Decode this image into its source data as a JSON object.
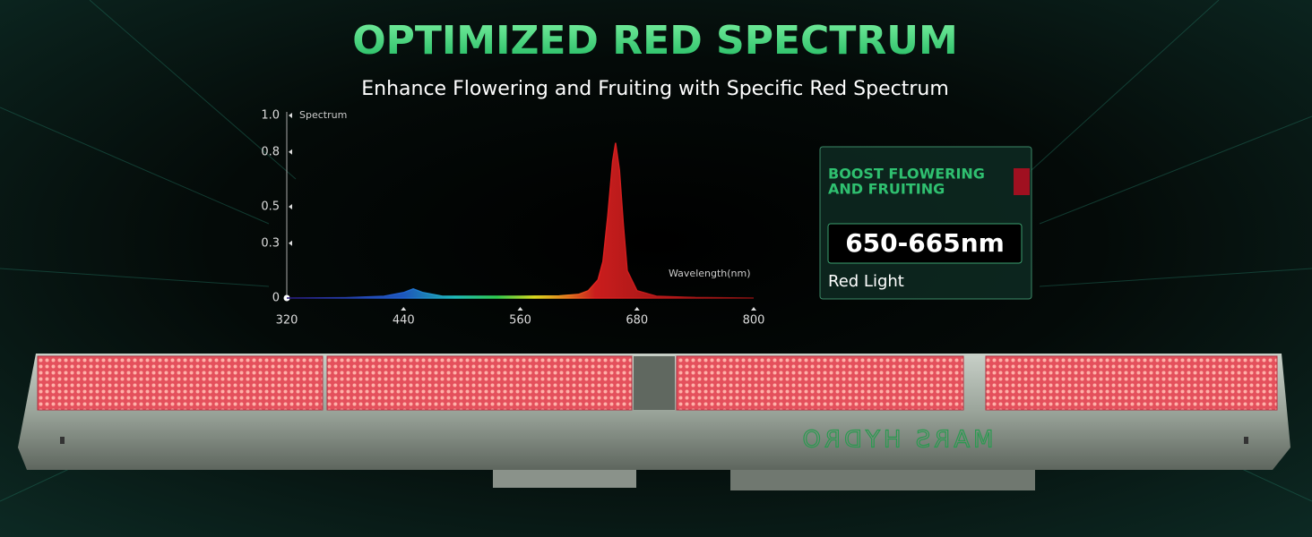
{
  "chart_data": {
    "type": "area",
    "title": "OPTIMIZED RED SPECTRUM",
    "subtitle": "Enhance Flowering and Fruiting with Specific Red Spectrum",
    "y_label": "Spectrum",
    "x_label": "Wavelength(nm)",
    "x": [
      320,
      380,
      420,
      440,
      450,
      460,
      480,
      520,
      560,
      600,
      620,
      630,
      640,
      645,
      650,
      655,
      658,
      662,
      666,
      670,
      680,
      700,
      740,
      800
    ],
    "values": [
      0,
      0.002,
      0.01,
      0.03,
      0.05,
      0.03,
      0.01,
      0.01,
      0.01,
      0.012,
      0.02,
      0.04,
      0.1,
      0.2,
      0.45,
      0.75,
      0.85,
      0.7,
      0.4,
      0.15,
      0.04,
      0.01,
      0.003,
      0
    ],
    "xlim": [
      320,
      800
    ],
    "xticks": [
      320,
      440,
      560,
      680,
      800
    ],
    "ylim": [
      0,
      1
    ],
    "yticks": [
      0,
      0.3,
      0.5,
      0.8,
      {
        "value": 1,
        "label": "1.0"
      }
    ]
  },
  "callout": {
    "heading": [
      "BOOST FLOWERING",
      "AND FRUITING"
    ],
    "range": "650-665nm",
    "label": "Red Light"
  },
  "product": {
    "brand": "MARS HYDRO"
  }
}
